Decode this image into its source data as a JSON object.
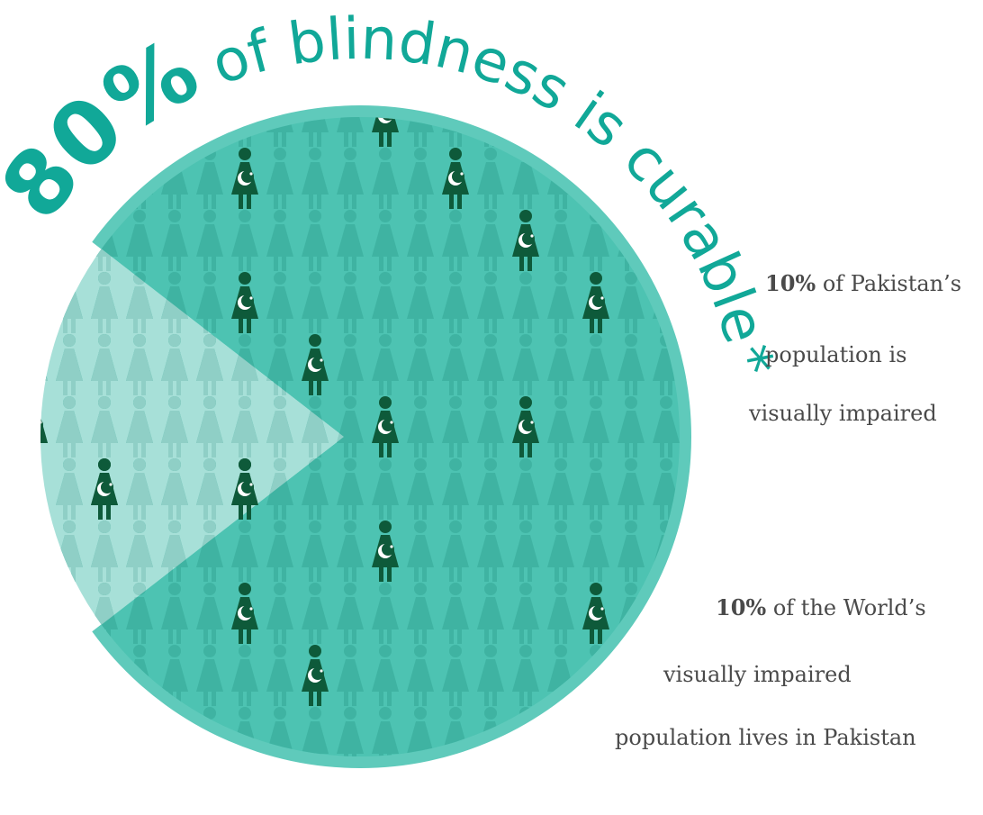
{
  "headline": {
    "percent": "80%",
    "rest": "of blindness is curable",
    "asterisk": "*"
  },
  "chart_data": {
    "type": "pie",
    "slices": [
      {
        "label": "curable",
        "value": 80,
        "color": "#4dc3b2"
      },
      {
        "label": "",
        "value": 20,
        "color": "#a7e0d8"
      }
    ],
    "title": "80% of blindness is curable*"
  },
  "colors": {
    "accent": "#11a898",
    "pie_main": "#4dc3b2",
    "pie_rim": "#5fcabb",
    "pie_slice_light": "#a7e0d8",
    "figure_faded": "#3fb3a2",
    "figure_faded_light": "#8fcfc6",
    "figure_highlight": "#0e5a3a",
    "text": "#4a4a4a"
  },
  "icons": {
    "person": "person-icon",
    "highlight_person": "pakistan-flag-person-icon"
  },
  "facts": [
    {
      "bold": "10%",
      "line1_rest": " of Pakistan’s",
      "line2": "population is",
      "line3": "visually impaired"
    },
    {
      "bold": "10%",
      "line1_rest": " of the World’s",
      "line2": "visually impaired",
      "line3": "population lives in Pakistan"
    }
  ]
}
